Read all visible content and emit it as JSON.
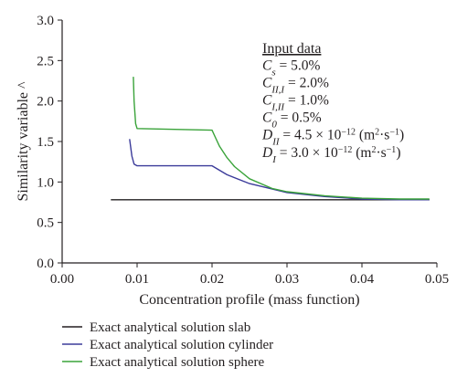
{
  "chart_data": {
    "type": "line",
    "xlabel": "Concentration profile (mass function)",
    "ylabel": "Similarity variable ^",
    "xlim": [
      0.0,
      0.05
    ],
    "ylim": [
      0.0,
      3.0
    ],
    "x_ticks": [
      "0.00",
      "0.01",
      "0.02",
      "0.03",
      "0.04",
      "0.05"
    ],
    "y_ticks": [
      "0.0",
      "0.5",
      "1.0",
      "1.5",
      "2.0",
      "2.5",
      "3.0"
    ],
    "legend_position": "below",
    "grid": false,
    "series": [
      {
        "name": "Exact analytical solution slab",
        "color": "#231f20",
        "x": [
          0.0065,
          0.01,
          0.02,
          0.03,
          0.04,
          0.049
        ],
        "y": [
          0.78,
          0.78,
          0.78,
          0.78,
          0.78,
          0.78
        ]
      },
      {
        "name": "Exact analytical solution cylinder",
        "color": "#3b3b9a",
        "x": [
          0.009,
          0.0093,
          0.0096,
          0.01,
          0.015,
          0.02,
          0.022,
          0.025,
          0.03,
          0.035,
          0.04,
          0.045,
          0.049
        ],
        "y": [
          1.53,
          1.32,
          1.22,
          1.2,
          1.2,
          1.2,
          1.09,
          0.98,
          0.87,
          0.82,
          0.79,
          0.78,
          0.78
        ]
      },
      {
        "name": "Exact analytical solution sphere",
        "color": "#3aa33a",
        "x": [
          0.0095,
          0.0096,
          0.0098,
          0.01,
          0.015,
          0.02,
          0.0205,
          0.021,
          0.022,
          0.023,
          0.025,
          0.028,
          0.03,
          0.035,
          0.04,
          0.045,
          0.049
        ],
        "y": [
          2.3,
          2.0,
          1.72,
          1.66,
          1.65,
          1.64,
          1.54,
          1.44,
          1.3,
          1.19,
          1.04,
          0.92,
          0.88,
          0.83,
          0.8,
          0.79,
          0.79
        ]
      }
    ],
    "annotation": {
      "heading": "Input data",
      "lines": [
        {
          "sym": "C",
          "sub": "s",
          "rest": " = 5.0%"
        },
        {
          "sym": "C",
          "sub": "II,I",
          "rest": " = 2.0%"
        },
        {
          "sym": "C",
          "sub": "I,II",
          "rest": " = 1.0%"
        },
        {
          "sym": "C",
          "sub": "0",
          "rest": " = 0.5%"
        }
      ],
      "diff_lines": [
        {
          "sym": "D",
          "sub": "II",
          "rest": " = 4.5 × 10",
          "exp": "−12",
          "unit": " (m",
          "unit_exp1": "2",
          "unit_mid": "·s",
          "unit_exp2": "−1",
          "unit_end": ")"
        },
        {
          "sym": "D",
          "sub": "I",
          "rest": " = 3.0 × 10",
          "exp": "−12",
          "unit": " (m",
          "unit_exp1": "2",
          "unit_mid": "·s",
          "unit_exp2": "−1",
          "unit_end": ")"
        }
      ]
    }
  }
}
